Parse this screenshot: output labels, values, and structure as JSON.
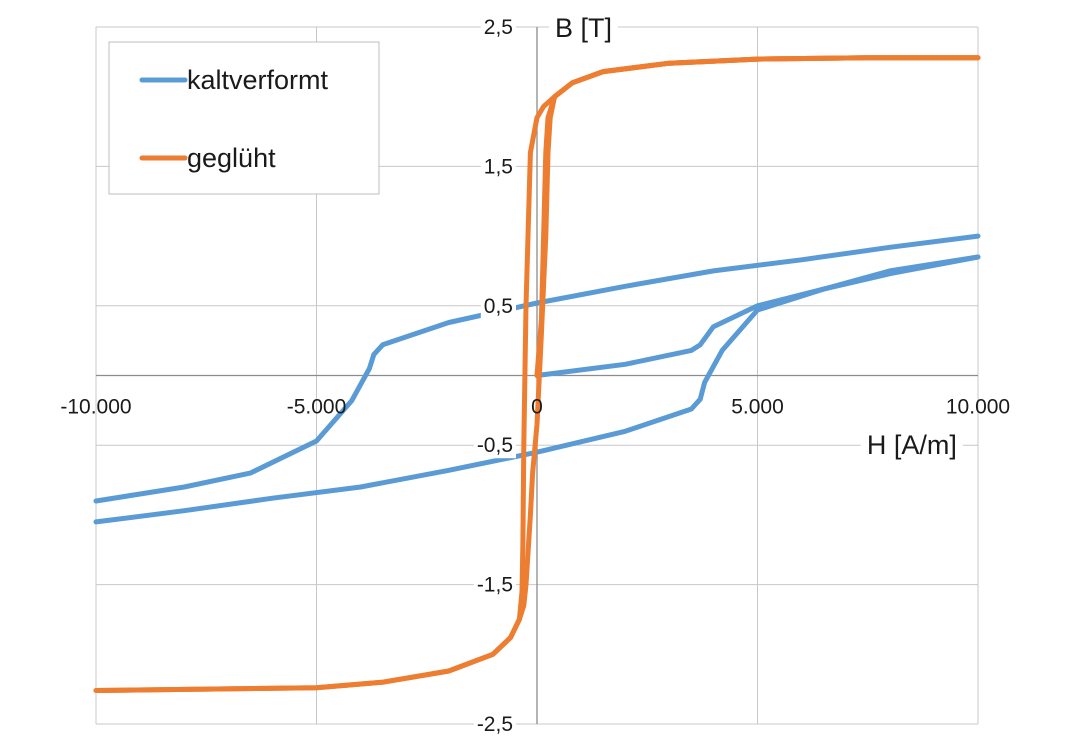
{
  "chart_data": {
    "type": "line",
    "xlabel": "H [A/m]",
    "ylabel": "B [T]",
    "xlim": [
      -10000,
      10000
    ],
    "ylim": [
      -2.5,
      2.5
    ],
    "x_ticks": [
      {
        "value": -10000,
        "label": "-10.000"
      },
      {
        "value": -5000,
        "label": "-5.000"
      },
      {
        "value": 0,
        "label": "0"
      },
      {
        "value": 5000,
        "label": "5.000"
      },
      {
        "value": 10000,
        "label": "10.000"
      }
    ],
    "y_ticks": [
      {
        "value": 2.5,
        "label": "2,5"
      },
      {
        "value": 1.5,
        "label": "1,5"
      },
      {
        "value": 0.5,
        "label": "0,5"
      },
      {
        "value": -0.5,
        "label": "-0,5"
      },
      {
        "value": -1.5,
        "label": "-1,5"
      },
      {
        "value": -2.5,
        "label": "-2,5"
      }
    ],
    "grid": true,
    "legend_position": "top-left",
    "series": [
      {
        "name": "kaltverformt",
        "color": "#5b9bd5",
        "segments": [
          {
            "x": [
              0,
              2000,
              3500,
              3700,
              4000,
              5000,
              6500,
              8000,
              10000
            ],
            "y": [
              0.0,
              0.08,
              0.18,
              0.22,
              0.35,
              0.5,
              0.62,
              0.73,
              0.85
            ]
          },
          {
            "x": [
              10000,
              8000,
              6000,
              4000,
              2000,
              0,
              -2000,
              -3500,
              -3700,
              -3800,
              -4200,
              -5000,
              -6500,
              -8000,
              -10000
            ],
            "y": [
              1.0,
              0.92,
              0.83,
              0.75,
              0.64,
              0.52,
              0.38,
              0.22,
              0.15,
              0.05,
              -0.18,
              -0.47,
              -0.7,
              -0.8,
              -0.9
            ]
          },
          {
            "x": [
              -10000,
              -8000,
              -6000,
              -4000,
              -2000,
              0,
              2000,
              3500,
              3700,
              3800,
              4200,
              5000,
              6500,
              8000,
              10000
            ],
            "y": [
              -1.05,
              -0.97,
              -0.88,
              -0.8,
              -0.68,
              -0.55,
              -0.4,
              -0.24,
              -0.17,
              -0.05,
              0.18,
              0.47,
              0.62,
              0.75,
              0.85
            ]
          }
        ]
      },
      {
        "name": "geglüht",
        "color": "#ed7d31",
        "segments": [
          {
            "x": [
              0,
              100,
              150,
              200,
              250,
              400,
              800,
              1500,
              3000,
              5000,
              7500,
              10000
            ],
            "y": [
              0.0,
              0.4,
              1.0,
              1.6,
              1.85,
              2.0,
              2.1,
              2.18,
              2.24,
              2.27,
              2.28,
              2.28
            ]
          },
          {
            "x": [
              10000,
              7500,
              5000,
              3000,
              1500,
              800,
              400,
              150,
              0,
              -150,
              -250,
              -300,
              -320,
              -340,
              -400,
              -600,
              -1000,
              -2000,
              -3500,
              -5000,
              -7500,
              -10000
            ],
            "y": [
              2.28,
              2.28,
              2.27,
              2.24,
              2.18,
              2.1,
              2.0,
              1.93,
              1.85,
              1.6,
              0.5,
              -0.5,
              -1.2,
              -1.55,
              -1.75,
              -1.88,
              -2.0,
              -2.12,
              -2.2,
              -2.24,
              -2.25,
              -2.26
            ]
          },
          {
            "x": [
              -10000,
              -7500,
              -5000,
              -3500,
              -2000,
              -1000,
              -600,
              -400,
              -300,
              -250,
              -200,
              -150,
              -100,
              0,
              100,
              200,
              250,
              300,
              400,
              800,
              1500,
              3000,
              5000,
              7500,
              10000
            ],
            "y": [
              -2.26,
              -2.25,
              -2.24,
              -2.2,
              -2.12,
              -2.0,
              -1.88,
              -1.75,
              -1.65,
              -1.5,
              -1.25,
              -1.0,
              -0.7,
              -0.35,
              0.3,
              1.0,
              1.6,
              1.85,
              2.0,
              2.1,
              2.18,
              2.24,
              2.27,
              2.28,
              2.28
            ]
          }
        ]
      }
    ]
  }
}
